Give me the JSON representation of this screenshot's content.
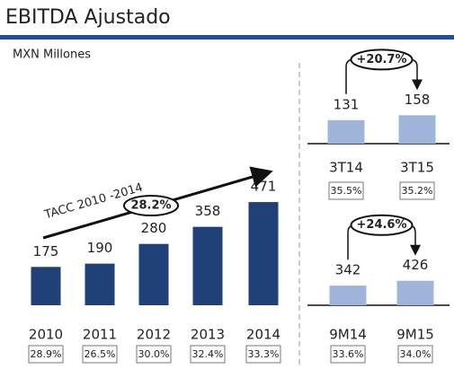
{
  "header": {
    "title": "EBITDA Ajustado",
    "subtitle": "MXN Millones"
  },
  "chart_data": [
    {
      "type": "bar",
      "categories": [
        "2010",
        "2011",
        "2012",
        "2013",
        "2014"
      ],
      "values": [
        175,
        190,
        280,
        358,
        471
      ],
      "color": "#1f4177",
      "ylim": [
        0,
        500
      ],
      "margin_labels": [
        "28.9%",
        "26.5%",
        "30.0%",
        "32.4%",
        "33.3%"
      ],
      "annotation": {
        "text": "TACC 2010 -2014",
        "label": "28.2%"
      }
    },
    {
      "type": "bar",
      "categories": [
        "3T14",
        "3T15"
      ],
      "values": [
        131,
        158
      ],
      "color": "#9fb4d9",
      "ylim": [
        0,
        200
      ],
      "margin_labels": [
        "35.5%",
        "35.2%"
      ],
      "annotation": {
        "label": "+20.7%"
      }
    },
    {
      "type": "bar",
      "categories": [
        "9M14",
        "9M15"
      ],
      "values": [
        342,
        426
      ],
      "color": "#9fb4d9",
      "ylim": [
        0,
        500
      ],
      "margin_labels": [
        "33.6%",
        "34.0%"
      ],
      "annotation": {
        "label": "+24.6%"
      }
    }
  ]
}
